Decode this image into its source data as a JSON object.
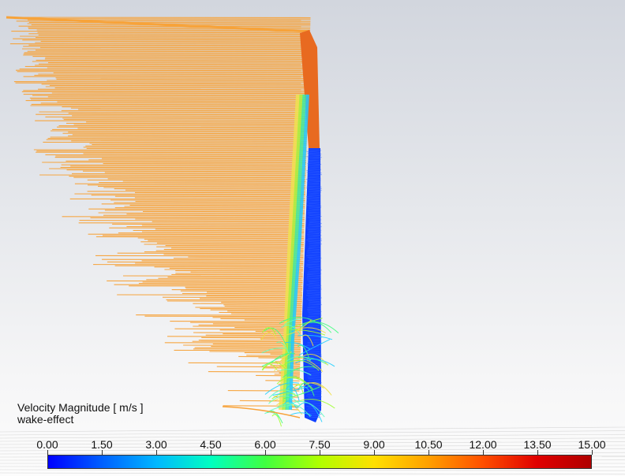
{
  "legend": {
    "title": "Velocity Magnitude [ m/s ]",
    "subtitle": "wake-effect",
    "ticks": [
      "0.00",
      "1.50",
      "3.00",
      "4.50",
      "6.00",
      "7.50",
      "9.00",
      "10.50",
      "12.00",
      "13.50",
      "15.00"
    ],
    "min": 0,
    "max": 15,
    "colormap": [
      "#0000ff",
      "#0060ff",
      "#00b8ff",
      "#00ffc0",
      "#40ff40",
      "#b0ff00",
      "#ffe000",
      "#ffa000",
      "#ff5000",
      "#e00000",
      "#b00000"
    ]
  },
  "scene": {
    "streamline_color_freestream": "#f7a33a",
    "streamline_color_top_edge": "#e86a20",
    "streamline_color_wake": "#1040ff",
    "background_top": "#d2d6de",
    "background_bottom": "#fcfcfc"
  }
}
